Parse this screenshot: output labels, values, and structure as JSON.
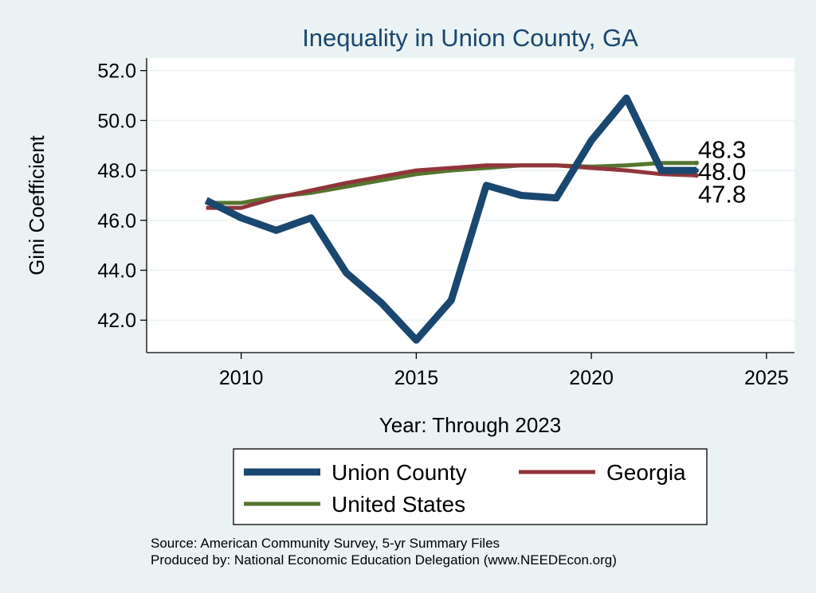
{
  "chart_data": {
    "type": "line",
    "title": "Inequality in Union County, GA",
    "xlabel": "Year: Through 2023",
    "ylabel": "Gini Coefficient",
    "xlim": [
      2007.3,
      2025.8
    ],
    "ylim": [
      40.7,
      52.5
    ],
    "xticks": [
      2010,
      2015,
      2020,
      2025
    ],
    "yticks": [
      42.0,
      44.0,
      46.0,
      48.0,
      50.0,
      52.0
    ],
    "grid": true,
    "legend_position": "bottom",
    "series": [
      {
        "name": "Union County",
        "color": "#1a476f",
        "width": 9,
        "x": [
          2009,
          2010,
          2011,
          2012,
          2013,
          2014,
          2015,
          2016,
          2017,
          2018,
          2019,
          2020,
          2021,
          2022,
          2023
        ],
        "y": [
          46.8,
          46.1,
          45.6,
          46.1,
          43.9,
          42.7,
          41.2,
          42.8,
          47.4,
          47.0,
          46.9,
          49.2,
          50.9,
          48.0,
          48.0
        ],
        "end_label": "48.0"
      },
      {
        "name": "Georgia",
        "color": "#90353b",
        "width": 5,
        "x": [
          2009,
          2010,
          2011,
          2012,
          2013,
          2014,
          2015,
          2016,
          2017,
          2018,
          2019,
          2020,
          2021,
          2022,
          2023
        ],
        "y": [
          46.5,
          46.5,
          46.9,
          47.2,
          47.5,
          47.75,
          48.0,
          48.1,
          48.2,
          48.2,
          48.2,
          48.1,
          48.0,
          47.85,
          47.8
        ],
        "end_label": "47.8"
      },
      {
        "name": "United States",
        "color": "#55752f",
        "width": 5,
        "x": [
          2009,
          2010,
          2011,
          2012,
          2013,
          2014,
          2015,
          2016,
          2017,
          2018,
          2019,
          2020,
          2021,
          2022,
          2023
        ],
        "y": [
          46.7,
          46.7,
          46.95,
          47.1,
          47.35,
          47.6,
          47.85,
          48.0,
          48.1,
          48.2,
          48.2,
          48.15,
          48.2,
          48.3,
          48.3
        ],
        "end_label": "48.3"
      }
    ]
  },
  "source": {
    "line1": "Source: American Community Survey, 5-yr Summary Files",
    "line2": "Produced by: National Economic Education Delegation (www.NEEDEcon.org)"
  }
}
